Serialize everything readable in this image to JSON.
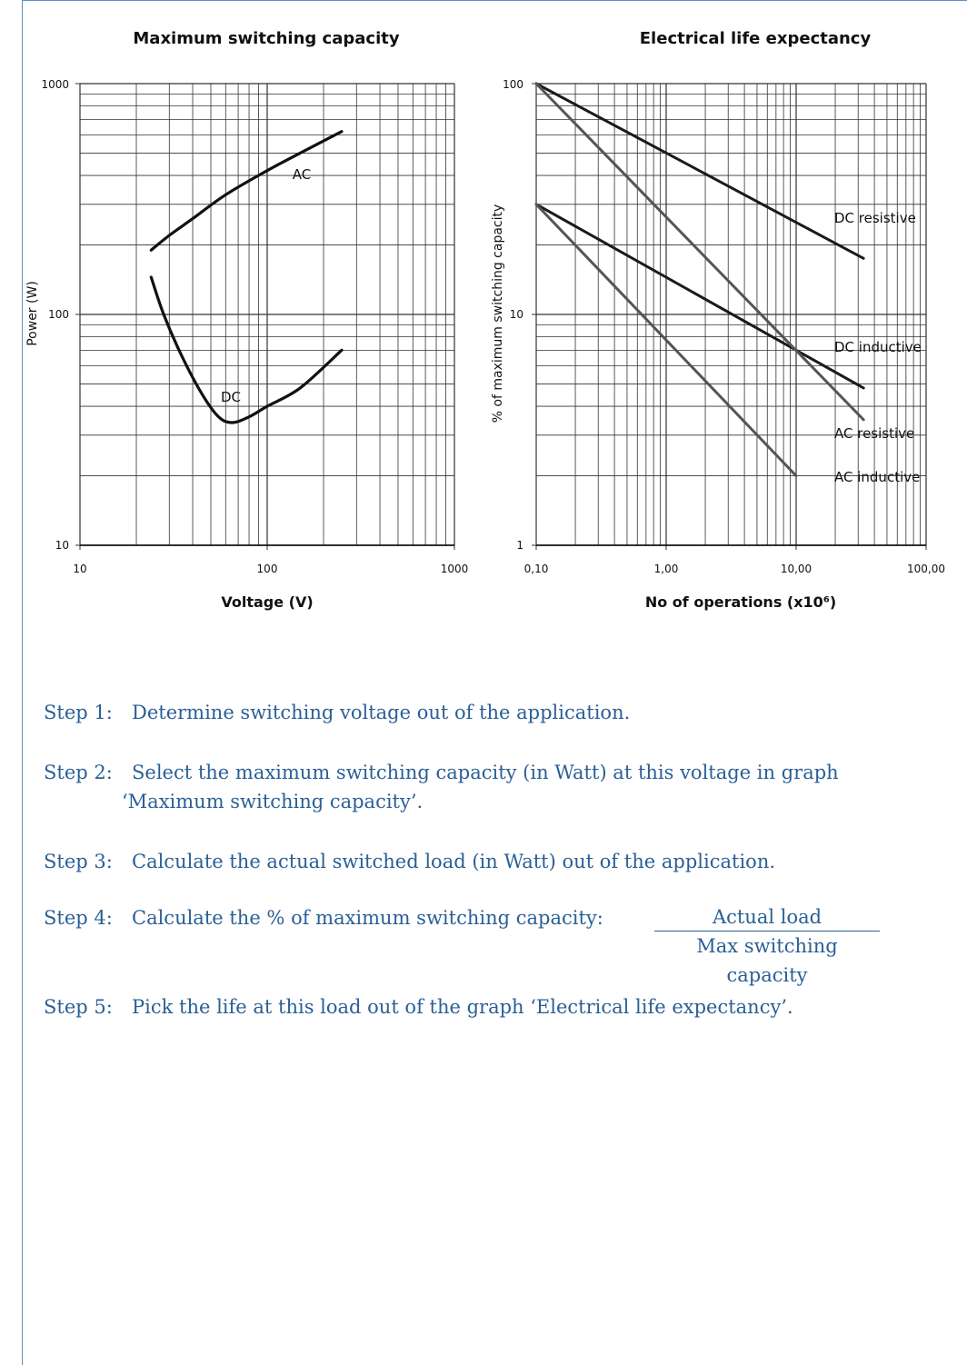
{
  "chart_data": [
    {
      "type": "line",
      "title": "Maximum switching capacity",
      "xlabel": "Voltage (V)",
      "ylabel": "Power (W)",
      "xscale": "log",
      "yscale": "log",
      "xlim": [
        10,
        1000
      ],
      "ylim": [
        10,
        1000
      ],
      "x_tick_labels": [
        "10",
        "100",
        "1000"
      ],
      "y_tick_labels": [
        "10",
        "100",
        "1000"
      ],
      "grid": true,
      "series": [
        {
          "name": "AC",
          "x": [
            24,
            30,
            40,
            60,
            100,
            150,
            250
          ],
          "y": [
            190,
            220,
            260,
            330,
            420,
            500,
            620
          ]
        },
        {
          "name": "DC",
          "x": [
            24,
            28,
            35,
            45,
            55,
            65,
            80,
            100,
            150,
            250
          ],
          "y": [
            145,
            100,
            66,
            45,
            36,
            34,
            36,
            40,
            48,
            70
          ]
        }
      ]
    },
    {
      "type": "line",
      "title": "Electrical life expectancy",
      "xlabel": "No of operations (x10⁶)",
      "ylabel": "% of maximum switching capacity",
      "xscale": "log",
      "yscale": "log",
      "xlim": [
        0.1,
        100
      ],
      "ylim": [
        1,
        100
      ],
      "x_tick_labels": [
        "0,10",
        "1,00",
        "10,00",
        "100,00"
      ],
      "y_tick_labels": [
        "1",
        "10",
        "100"
      ],
      "grid": true,
      "series": [
        {
          "name": "DC resistive",
          "x": [
            0.1,
            33
          ],
          "y": [
            100,
            17.5
          ]
        },
        {
          "name": "DC inductive",
          "x": [
            0.1,
            33
          ],
          "y": [
            30,
            4.8
          ]
        },
        {
          "name": "AC resistive",
          "x": [
            0.1,
            33
          ],
          "y": [
            100,
            3.5
          ]
        },
        {
          "name": "AC inductive",
          "x": [
            0.1,
            10
          ],
          "y": [
            30,
            2
          ]
        }
      ]
    }
  ],
  "steps": [
    {
      "num": "Step 1:",
      "text": "Determine switching voltage out of the application."
    },
    {
      "num": "Step 2:",
      "text": "Select the maximum switching capacity (in Watt) at this voltage in graph",
      "text2": "‘Maximum switching capacity’."
    },
    {
      "num": "Step 3:",
      "text": "Calculate the actual switched load (in Watt) out of the application."
    },
    {
      "num": "Step 4:",
      "text": "Calculate the % of maximum switching capacity:",
      "numerator": "Actual load",
      "denominator": "Max switching capacity"
    },
    {
      "num": "Step 5:",
      "text": "Pick the life at this load out of the graph ‘Electrical life expectancy’."
    }
  ],
  "colors": {
    "border": "#5a90c2",
    "step_text": "#2a5f96",
    "dc_line": "#1a1a1a",
    "ac_line": "#555555",
    "grid": "#333333"
  }
}
